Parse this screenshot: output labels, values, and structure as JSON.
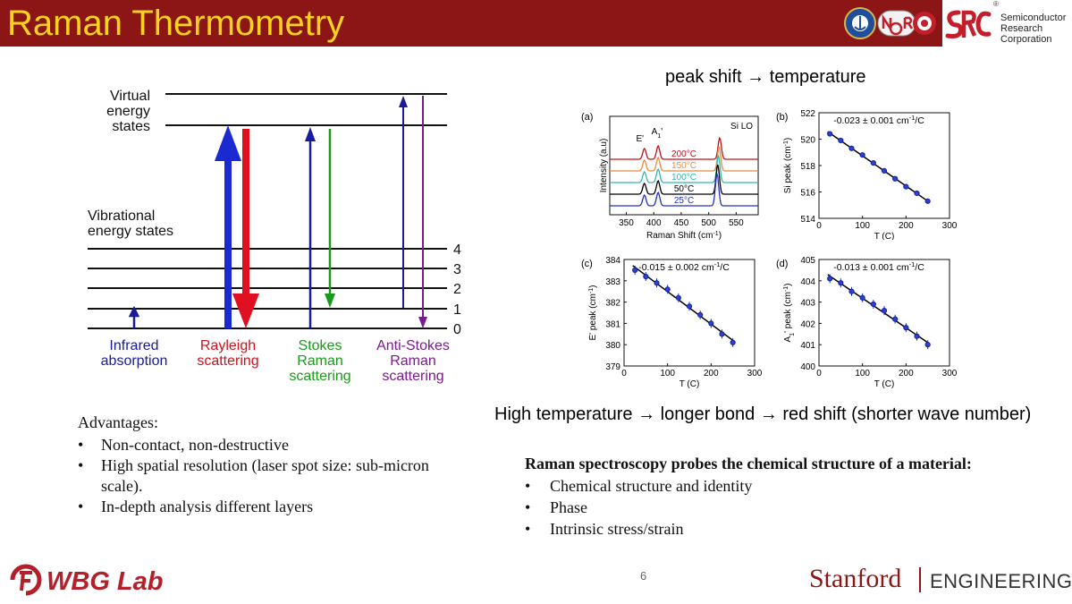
{
  "header": {
    "title": "Raman Thermometry",
    "src_registered": "®",
    "src_name": "Semiconductor\nResearch\nCorporation",
    "colors": {
      "bar": "#8c1515",
      "title": "#ffd21f"
    }
  },
  "energy_diagram": {
    "virtual_label": "Virtual\nenergy\nstates",
    "vibrational_label": "Vibrational\nenergy states",
    "levels": [
      "4",
      "3",
      "2",
      "1",
      "0"
    ],
    "processes": [
      {
        "label": "Infrared\nabsorption",
        "color": "#1a1a9c"
      },
      {
        "label": "Rayleigh\nscattering",
        "color": "#d0101a"
      },
      {
        "label": "Stokes\nRaman\nscattering",
        "color": "#1a9a1a"
      },
      {
        "label": "Anti-Stokes\nRaman\nscattering",
        "color": "#7a1a8c"
      }
    ]
  },
  "peak_heading": "peak shift → temperature",
  "chart_data": [
    {
      "type": "line",
      "panel": "(a)",
      "xlabel": "Raman Shift (cm-1)",
      "ylabel": "Intensity (a.u)",
      "xlim": [
        320,
        590
      ],
      "xticks": [
        "350",
        "400",
        "450",
        "500",
        "550"
      ],
      "peak_labels": [
        "E'",
        "A1'",
        "Si LO"
      ],
      "series": [
        {
          "name": "200°C",
          "color": "#c0101a"
        },
        {
          "name": "150°C",
          "color": "#e88a40"
        },
        {
          "name": "100°C",
          "color": "#30b8b0"
        },
        {
          "name": "50°C",
          "color": "#000000"
        },
        {
          "name": "25°C",
          "color": "#2030c0"
        }
      ]
    },
    {
      "type": "scatter",
      "panel": "(b)",
      "annotation": "-0.023 ± 0.001 cm-1/C",
      "xlabel": "T (C)",
      "ylabel": "Si peak (cm-1)",
      "xlim": [
        0,
        300
      ],
      "ylim": [
        514,
        522
      ],
      "xticks": [
        "0",
        "100",
        "200",
        "300"
      ],
      "yticks": [
        "514",
        "516",
        "518",
        "520",
        "522"
      ],
      "x": [
        25,
        50,
        75,
        100,
        125,
        150,
        175,
        200,
        225,
        250
      ],
      "y": [
        520.4,
        519.9,
        519.3,
        518.8,
        518.2,
        517.6,
        517.0,
        516.4,
        515.9,
        515.3
      ]
    },
    {
      "type": "scatter",
      "panel": "(c)",
      "annotation": "-0.015 ± 0.002 cm-1/C",
      "xlabel": "T (C)",
      "ylabel": "E' peak (cm-1)",
      "xlim": [
        0,
        300
      ],
      "ylim": [
        379,
        384
      ],
      "xticks": [
        "0",
        "100",
        "200",
        "300"
      ],
      "yticks": [
        "379",
        "380",
        "381",
        "382",
        "383",
        "384"
      ],
      "x": [
        25,
        50,
        75,
        100,
        125,
        150,
        175,
        200,
        225,
        250
      ],
      "y": [
        383.5,
        383.2,
        382.9,
        382.6,
        382.2,
        381.8,
        381.4,
        381.0,
        380.5,
        380.1
      ]
    },
    {
      "type": "scatter",
      "panel": "(d)",
      "annotation": "-0.013 ± 0.001 cm-1/C",
      "xlabel": "T (C)",
      "ylabel": "A1' peak (cm-1)",
      "xlim": [
        0,
        300
      ],
      "ylim": [
        400,
        405
      ],
      "xticks": [
        "0",
        "100",
        "200",
        "300"
      ],
      "yticks": [
        "400",
        "401",
        "402",
        "403",
        "404",
        "405"
      ],
      "x": [
        25,
        50,
        75,
        100,
        125,
        150,
        175,
        200,
        225,
        250
      ],
      "y": [
        404.1,
        403.9,
        403.5,
        403.2,
        402.9,
        402.6,
        402.2,
        401.8,
        401.4,
        401.0
      ]
    }
  ],
  "redshift_text": "High temperature → longer bond → red shift (shorter wave number)",
  "advantages": {
    "title": "Advantages:",
    "items": [
      "Non-contact, non-destructive",
      "High spatial resolution (laser spot size: sub-micron scale).",
      "In-depth analysis different layers"
    ]
  },
  "raman": {
    "title": "Raman spectroscopy probes the chemical structure of a material:",
    "items": [
      "Chemical structure and identity",
      "Phase",
      "Intrinsic stress/strain"
    ]
  },
  "footer": {
    "wbg_text": "WBG Lab",
    "page_number": "6",
    "stanford": "Stanford",
    "engineering": "ENGINEERING"
  }
}
